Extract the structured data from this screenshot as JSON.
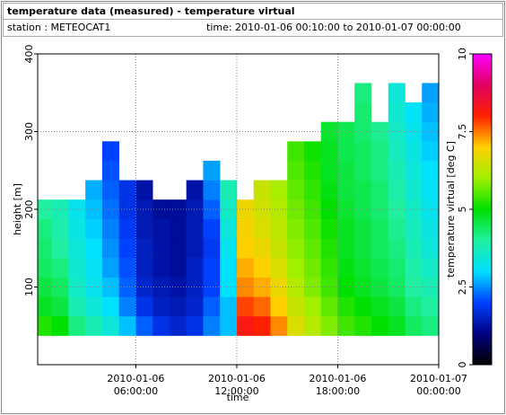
{
  "chart_data": {
    "type": "heatmap",
    "title": "temperature data (measured) - temperature virtual",
    "station": "station : METEOCAT1",
    "time_range": "time: 2010-01-06 00:10:00 to 2010-01-07 00:00:00",
    "xlabel": "time",
    "ylabel": "height [m]",
    "colorbar_label": "temperature virtual [deg C]",
    "xlim": [
      "2010-01-06 00:10:00",
      "2010-01-07 00:00:00"
    ],
    "xticks": [
      {
        "value": "2010-01-06 06:00:00",
        "label": [
          "2010-01-06",
          "06:00:00"
        ]
      },
      {
        "value": "2010-01-06 12:00:00",
        "label": [
          "2010-01-06",
          "12:00:00"
        ]
      },
      {
        "value": "2010-01-06 18:00:00",
        "label": [
          "2010-01-06",
          "18:00:00"
        ]
      },
      {
        "value": "2010-01-07 00:00:00",
        "label": [
          "2010-01-07",
          "00:00:00"
        ]
      }
    ],
    "ylim": [
      0,
      400
    ],
    "yticks": [
      100,
      200,
      300,
      400
    ],
    "zlim": [
      0,
      10
    ],
    "zticks": [
      0,
      2.5,
      5,
      7.5,
      10
    ],
    "grid": true,
    "colormap": [
      [
        0,
        "#000000"
      ],
      [
        1,
        "#000080"
      ],
      [
        2,
        "#0040ff"
      ],
      [
        3,
        "#00e0ff"
      ],
      [
        4,
        "#20f0a0"
      ],
      [
        5,
        "#00e000"
      ],
      [
        6,
        "#a0f000"
      ],
      [
        7,
        "#ffd000"
      ],
      [
        8,
        "#ff2000"
      ],
      [
        9,
        "#e00060"
      ],
      [
        10,
        "#ff00ff"
      ]
    ],
    "x": [
      "2010-01-06 00:30:00",
      "2010-01-06 01:30:00",
      "2010-01-06 02:30:00",
      "2010-01-06 03:30:00",
      "2010-01-06 04:30:00",
      "2010-01-06 05:30:00",
      "2010-01-06 06:30:00",
      "2010-01-06 07:30:00",
      "2010-01-06 08:30:00",
      "2010-01-06 09:30:00",
      "2010-01-06 10:30:00",
      "2010-01-06 11:30:00",
      "2010-01-06 12:30:00",
      "2010-01-06 13:30:00",
      "2010-01-06 14:30:00",
      "2010-01-06 15:30:00",
      "2010-01-06 16:30:00",
      "2010-01-06 17:30:00",
      "2010-01-06 18:30:00",
      "2010-01-06 19:30:00",
      "2010-01-06 20:30:00",
      "2010-01-06 21:30:00",
      "2010-01-06 22:30:00",
      "2010-01-06 23:30:00"
    ],
    "y": [
      50,
      75,
      100,
      125,
      150,
      175,
      200,
      225,
      250,
      275,
      300,
      325,
      350
    ],
    "z": [
      [
        5.2,
        4.8,
        4.6,
        4.4,
        4.3,
        4.2,
        4.0,
        null,
        null,
        null,
        null,
        null,
        null
      ],
      [
        5.0,
        4.6,
        4.4,
        4.2,
        4.0,
        3.9,
        3.8,
        null,
        null,
        null,
        null,
        null,
        null
      ],
      [
        4.2,
        3.8,
        3.6,
        3.5,
        3.4,
        3.3,
        3.2,
        null,
        null,
        null,
        null,
        null,
        null
      ],
      [
        3.8,
        3.4,
        3.2,
        3.1,
        3.0,
        2.9,
        2.8,
        2.7,
        null,
        null,
        null,
        null,
        null
      ],
      [
        3.4,
        3.0,
        2.8,
        2.6,
        2.5,
        2.4,
        2.3,
        2.2,
        2.1,
        2.0,
        null,
        null,
        null
      ],
      [
        2.8,
        2.4,
        2.2,
        2.1,
        2.0,
        1.9,
        1.8,
        1.8,
        null,
        null,
        null,
        null,
        null
      ],
      [
        2.2,
        1.8,
        1.6,
        1.5,
        1.5,
        1.4,
        1.4,
        1.3,
        null,
        null,
        null,
        null,
        null
      ],
      [
        1.8,
        1.5,
        1.4,
        1.3,
        1.3,
        1.3,
        1.2,
        null,
        null,
        null,
        null,
        null,
        null
      ],
      [
        1.6,
        1.4,
        1.3,
        1.2,
        1.2,
        1.2,
        1.2,
        null,
        null,
        null,
        null,
        null,
        null
      ],
      [
        1.8,
        1.6,
        1.5,
        1.5,
        1.4,
        1.4,
        1.4,
        1.3,
        null,
        null,
        null,
        null,
        null
      ],
      [
        2.4,
        2.2,
        2.0,
        2.0,
        1.9,
        2.0,
        2.2,
        2.4,
        2.6,
        null,
        null,
        null,
        null
      ],
      [
        2.8,
        2.8,
        3.0,
        3.0,
        3.2,
        3.4,
        3.6,
        3.8,
        null,
        null,
        null,
        null,
        null
      ],
      [
        8.2,
        7.8,
        7.4,
        7.2,
        7.0,
        6.9,
        6.8,
        null,
        null,
        null,
        null,
        null,
        null
      ],
      [
        8.0,
        7.6,
        7.2,
        7.0,
        6.8,
        6.6,
        6.5,
        6.4,
        null,
        null,
        null,
        null,
        null
      ],
      [
        7.4,
        7.0,
        6.8,
        6.6,
        6.4,
        6.3,
        6.2,
        6.1,
        null,
        null,
        null,
        null,
        null
      ],
      [
        6.6,
        6.4,
        6.2,
        6.0,
        5.9,
        5.8,
        5.7,
        5.6,
        5.5,
        5.4,
        null,
        null,
        null
      ],
      [
        6.2,
        6.0,
        5.8,
        5.7,
        5.6,
        5.5,
        5.4,
        5.3,
        5.2,
        5.1,
        null,
        null,
        null
      ],
      [
        5.8,
        5.6,
        5.4,
        5.3,
        5.2,
        5.1,
        5.0,
        4.9,
        4.8,
        4.8,
        4.7,
        null,
        null
      ],
      [
        5.4,
        5.2,
        5.0,
        4.9,
        4.8,
        4.8,
        4.7,
        4.6,
        4.6,
        4.5,
        4.5,
        null,
        null
      ],
      [
        5.2,
        5.0,
        4.8,
        4.7,
        4.6,
        4.6,
        4.5,
        4.5,
        4.4,
        4.4,
        4.3,
        4.3,
        4.2
      ],
      [
        5.0,
        4.8,
        4.6,
        4.5,
        4.4,
        4.4,
        4.3,
        4.3,
        4.2,
        4.2,
        4.1,
        null,
        null
      ],
      [
        4.8,
        4.6,
        4.4,
        4.3,
        4.2,
        4.1,
        4.0,
        3.9,
        3.8,
        3.7,
        3.6,
        3.5,
        3.4
      ],
      [
        4.4,
        4.2,
        4.0,
        3.9,
        3.8,
        3.7,
        3.6,
        3.5,
        3.4,
        3.3,
        3.2,
        3.1,
        null
      ],
      [
        4.2,
        4.0,
        3.8,
        3.6,
        3.4,
        3.3,
        3.2,
        3.1,
        3.0,
        2.9,
        2.8,
        2.7,
        2.6
      ]
    ]
  }
}
